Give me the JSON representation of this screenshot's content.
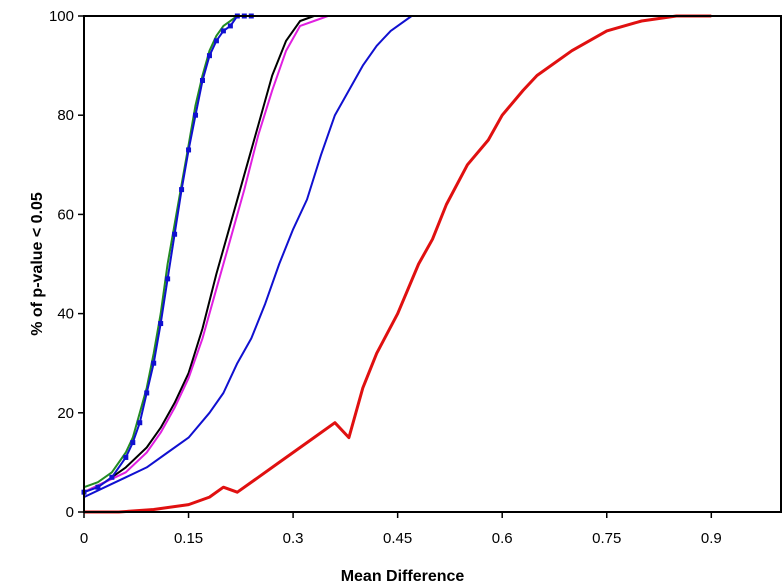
{
  "chart_data": {
    "type": "line",
    "title": "",
    "xlabel": "Mean Difference",
    "ylabel": "% of p-value < 0.05",
    "xlim": [
      0,
      1.0
    ],
    "ylim": [
      0,
      100
    ],
    "x_ticks": [
      "0",
      "0.15",
      "0.3",
      "0.45",
      "0.6",
      "0.75",
      "0.9"
    ],
    "y_ticks": [
      "0",
      "20",
      "40",
      "60",
      "80",
      "100"
    ],
    "grid": false,
    "legend": "none",
    "series": [
      {
        "color": "#e01010",
        "markers": false,
        "points": [
          [
            0,
            0
          ],
          [
            0.05,
            0
          ],
          [
            0.1,
            0.5
          ],
          [
            0.15,
            1.5
          ],
          [
            0.18,
            3
          ],
          [
            0.2,
            5
          ],
          [
            0.22,
            4
          ],
          [
            0.25,
            7
          ],
          [
            0.28,
            10
          ],
          [
            0.3,
            12
          ],
          [
            0.33,
            15
          ],
          [
            0.36,
            18
          ],
          [
            0.38,
            15
          ],
          [
            0.4,
            25
          ],
          [
            0.42,
            32
          ],
          [
            0.45,
            40
          ],
          [
            0.48,
            50
          ],
          [
            0.5,
            55
          ],
          [
            0.52,
            62
          ],
          [
            0.55,
            70
          ],
          [
            0.58,
            75
          ],
          [
            0.6,
            80
          ],
          [
            0.63,
            85
          ],
          [
            0.65,
            88
          ],
          [
            0.7,
            93
          ],
          [
            0.75,
            97
          ],
          [
            0.8,
            99
          ],
          [
            0.85,
            100
          ],
          [
            0.9,
            100
          ]
        ]
      },
      {
        "color": "#1010d0",
        "markers": false,
        "points": [
          [
            0,
            3
          ],
          [
            0.03,
            5
          ],
          [
            0.06,
            7
          ],
          [
            0.09,
            9
          ],
          [
            0.12,
            12
          ],
          [
            0.15,
            15
          ],
          [
            0.18,
            20
          ],
          [
            0.2,
            24
          ],
          [
            0.22,
            30
          ],
          [
            0.24,
            35
          ],
          [
            0.26,
            42
          ],
          [
            0.28,
            50
          ],
          [
            0.3,
            57
          ],
          [
            0.32,
            63
          ],
          [
            0.34,
            72
          ],
          [
            0.36,
            80
          ],
          [
            0.38,
            85
          ],
          [
            0.4,
            90
          ],
          [
            0.42,
            94
          ],
          [
            0.44,
            97
          ],
          [
            0.47,
            100
          ],
          [
            0.5,
            100
          ],
          [
            1.0,
            100
          ]
        ]
      },
      {
        "color": "#000000",
        "markers": false,
        "points": [
          [
            0,
            4
          ],
          [
            0.03,
            6
          ],
          [
            0.06,
            9
          ],
          [
            0.09,
            13
          ],
          [
            0.11,
            17
          ],
          [
            0.13,
            22
          ],
          [
            0.15,
            28
          ],
          [
            0.17,
            37
          ],
          [
            0.19,
            48
          ],
          [
            0.21,
            58
          ],
          [
            0.23,
            68
          ],
          [
            0.25,
            78
          ],
          [
            0.27,
            88
          ],
          [
            0.29,
            95
          ],
          [
            0.31,
            99
          ],
          [
            0.33,
            100
          ]
        ]
      },
      {
        "color": "#e020e0",
        "markers": false,
        "points": [
          [
            0,
            4
          ],
          [
            0.03,
            6
          ],
          [
            0.06,
            8
          ],
          [
            0.09,
            12
          ],
          [
            0.11,
            16
          ],
          [
            0.13,
            21
          ],
          [
            0.15,
            27
          ],
          [
            0.17,
            35
          ],
          [
            0.19,
            45
          ],
          [
            0.21,
            55
          ],
          [
            0.23,
            65
          ],
          [
            0.25,
            76
          ],
          [
            0.27,
            85
          ],
          [
            0.29,
            93
          ],
          [
            0.31,
            98
          ],
          [
            0.33,
            99
          ],
          [
            0.35,
            100
          ]
        ]
      },
      {
        "color": "#228b22",
        "markers": false,
        "points": [
          [
            0,
            5
          ],
          [
            0.02,
            6
          ],
          [
            0.04,
            8
          ],
          [
            0.06,
            12
          ],
          [
            0.07,
            15
          ],
          [
            0.08,
            20
          ],
          [
            0.09,
            25
          ],
          [
            0.1,
            32
          ],
          [
            0.11,
            40
          ],
          [
            0.12,
            50
          ],
          [
            0.13,
            58
          ],
          [
            0.14,
            66
          ],
          [
            0.15,
            74
          ],
          [
            0.16,
            82
          ],
          [
            0.17,
            88
          ],
          [
            0.18,
            93
          ],
          [
            0.19,
            96
          ],
          [
            0.2,
            98
          ],
          [
            0.22,
            100
          ],
          [
            0.24,
            100
          ]
        ]
      },
      {
        "color": "#1010d0",
        "markers": true,
        "points": [
          [
            0,
            4
          ],
          [
            0.02,
            5
          ],
          [
            0.04,
            7
          ],
          [
            0.06,
            11
          ],
          [
            0.07,
            14
          ],
          [
            0.08,
            18
          ],
          [
            0.09,
            24
          ],
          [
            0.1,
            30
          ],
          [
            0.11,
            38
          ],
          [
            0.12,
            47
          ],
          [
            0.13,
            56
          ],
          [
            0.14,
            65
          ],
          [
            0.15,
            73
          ],
          [
            0.16,
            80
          ],
          [
            0.17,
            87
          ],
          [
            0.18,
            92
          ],
          [
            0.19,
            95
          ],
          [
            0.2,
            97
          ],
          [
            0.21,
            98
          ],
          [
            0.22,
            100
          ],
          [
            0.23,
            100
          ],
          [
            0.24,
            100
          ],
          [
            1.0,
            100
          ]
        ]
      }
    ]
  }
}
